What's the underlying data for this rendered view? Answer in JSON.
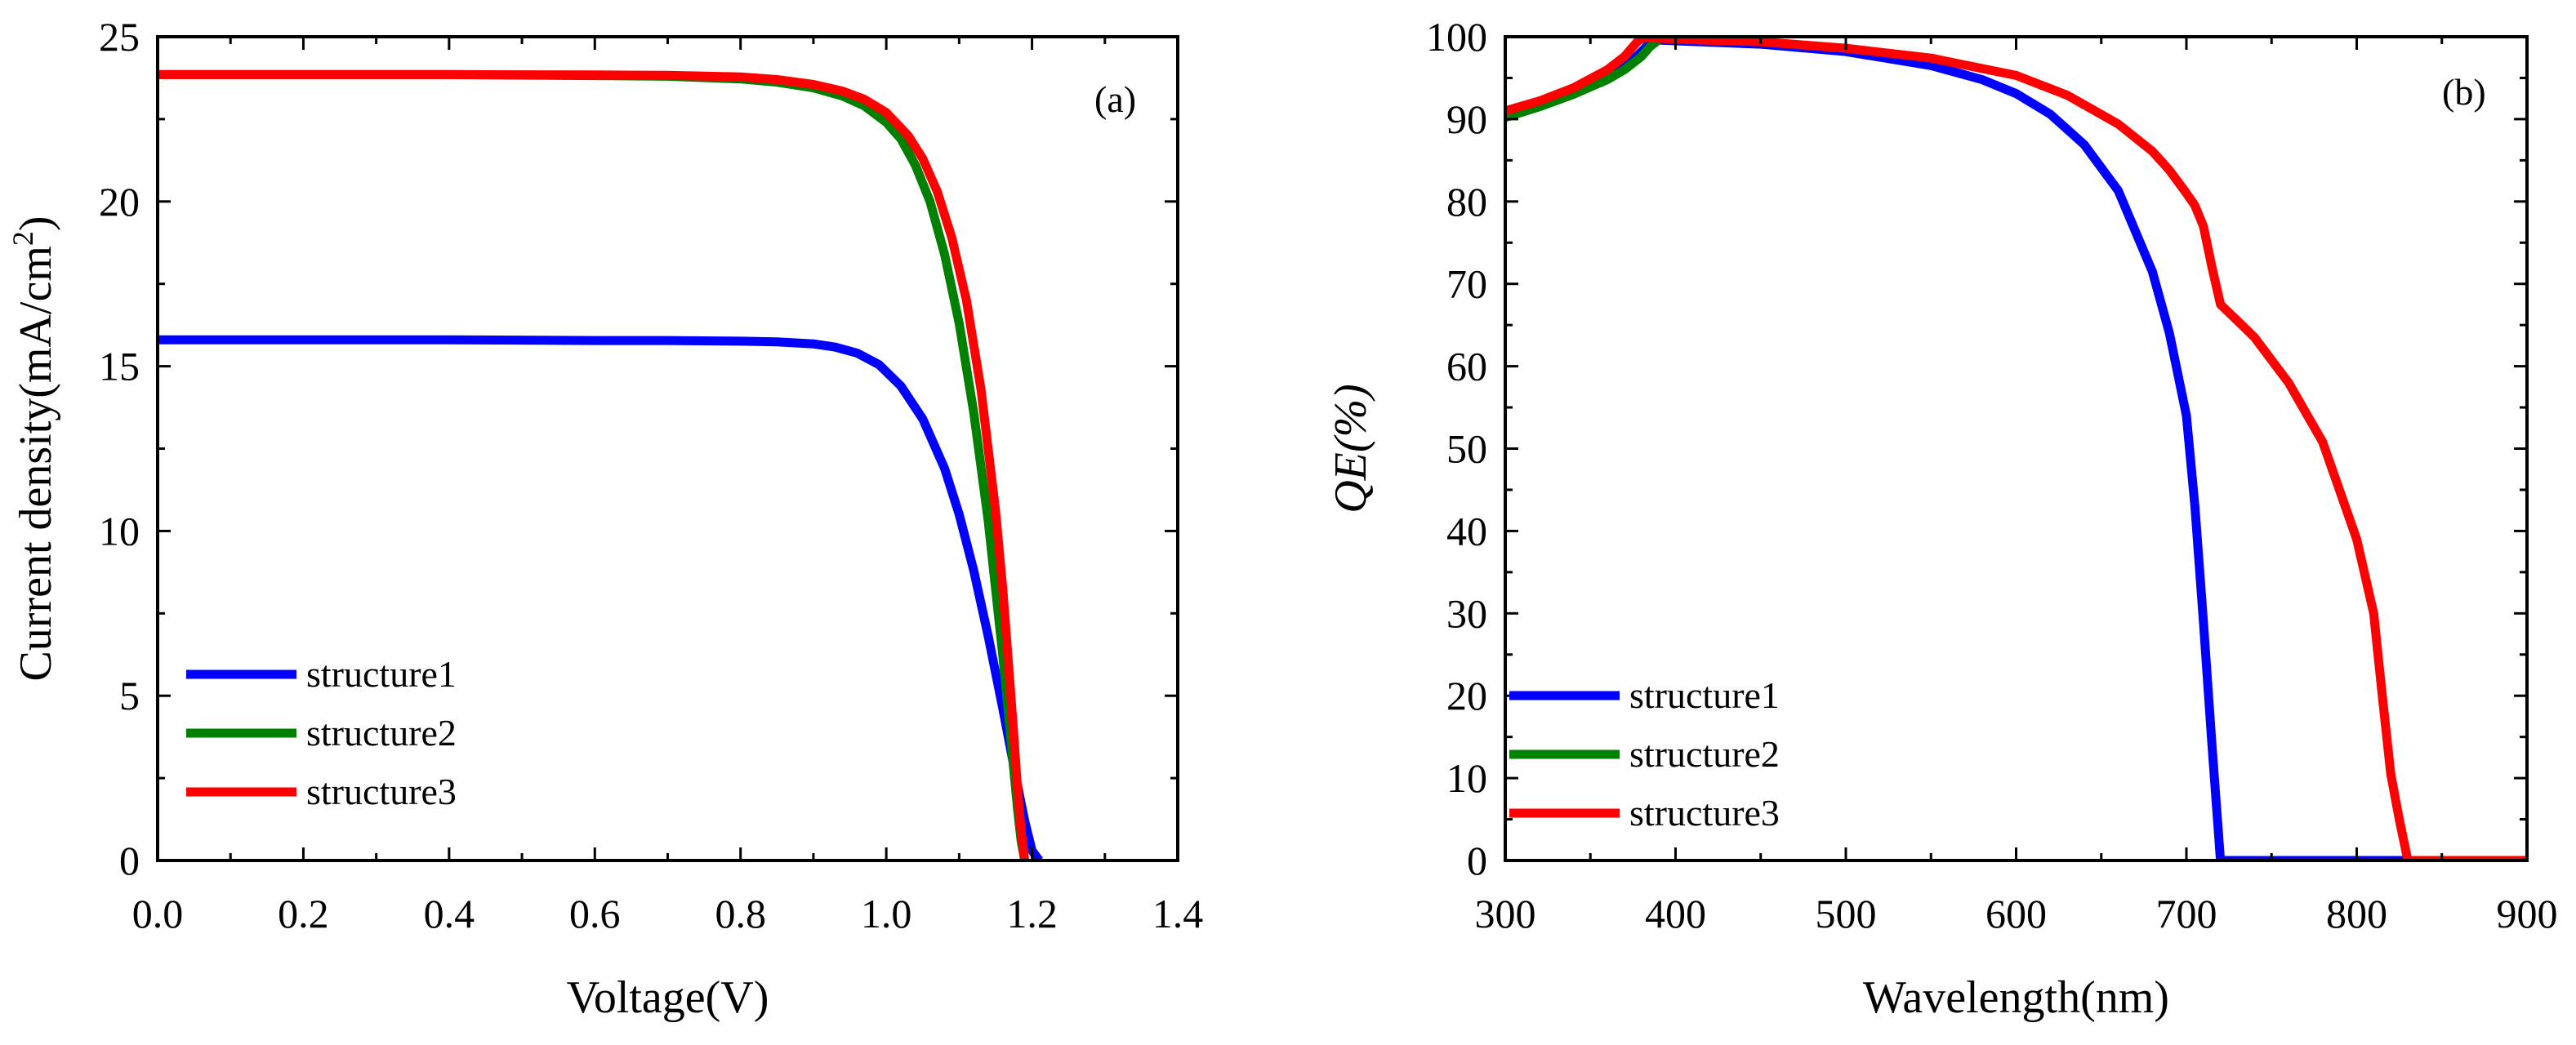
{
  "chart_data": [
    {
      "type": "line",
      "panel_label": "(a)",
      "xlabel": "Voltage(V)",
      "ylabel": "Current density(mA/cm",
      "ylabel_superscript": "2",
      "ylabel_suffix": ")",
      "xlim": [
        0.0,
        1.4
      ],
      "ylim": [
        0,
        25
      ],
      "xticks": [
        0.0,
        0.2,
        0.4,
        0.6,
        0.8,
        1.0,
        1.2,
        1.4
      ],
      "xtick_labels": [
        "0.0",
        "0.2",
        "0.4",
        "0.6",
        "0.8",
        "1.0",
        "1.2",
        "1.4"
      ],
      "yticks": [
        0,
        5,
        10,
        15,
        20,
        25
      ],
      "ytick_labels": [
        "0",
        "5",
        "10",
        "15",
        "20",
        "25"
      ],
      "legend_position": "lower-left",
      "series": [
        {
          "name": "structure1",
          "color": "#0000ff",
          "x": [
            0.0,
            0.2,
            0.4,
            0.6,
            0.7,
            0.8,
            0.85,
            0.9,
            0.93,
            0.96,
            0.99,
            1.02,
            1.05,
            1.08,
            1.1,
            1.12,
            1.14,
            1.16,
            1.18,
            1.19,
            1.2,
            1.21
          ],
          "y": [
            15.8,
            15.8,
            15.8,
            15.78,
            15.78,
            15.76,
            15.74,
            15.68,
            15.58,
            15.4,
            15.05,
            14.4,
            13.4,
            11.9,
            10.5,
            8.8,
            6.8,
            4.6,
            2.3,
            1.2,
            0.3,
            0.0
          ]
        },
        {
          "name": "structure2",
          "color": "#008000",
          "x": [
            0.0,
            0.2,
            0.4,
            0.6,
            0.7,
            0.8,
            0.85,
            0.9,
            0.94,
            0.97,
            1.0,
            1.02,
            1.04,
            1.06,
            1.08,
            1.1,
            1.12,
            1.14,
            1.16,
            1.17,
            1.18,
            1.185,
            1.19
          ],
          "y": [
            23.85,
            23.85,
            23.85,
            23.82,
            23.8,
            23.72,
            23.62,
            23.45,
            23.2,
            22.9,
            22.4,
            21.9,
            21.1,
            20.0,
            18.4,
            16.3,
            13.6,
            10.3,
            6.2,
            3.9,
            1.6,
            0.6,
            0.0
          ]
        },
        {
          "name": "structure3",
          "color": "#ff0000",
          "x": [
            0.0,
            0.2,
            0.4,
            0.6,
            0.7,
            0.8,
            0.85,
            0.9,
            0.94,
            0.97,
            1.0,
            1.03,
            1.05,
            1.07,
            1.09,
            1.11,
            1.13,
            1.15,
            1.16,
            1.17,
            1.175,
            1.18,
            1.185,
            1.19
          ],
          "y": [
            23.85,
            23.85,
            23.85,
            23.84,
            23.83,
            23.78,
            23.7,
            23.55,
            23.35,
            23.1,
            22.7,
            22.0,
            21.3,
            20.3,
            18.9,
            17.0,
            14.3,
            10.6,
            8.2,
            5.3,
            3.8,
            2.2,
            0.9,
            0.0
          ]
        }
      ]
    },
    {
      "type": "line",
      "panel_label": "(b)",
      "xlabel": "Wavelength(nm)",
      "ylabel": "QE(%)",
      "xlim": [
        300,
        900
      ],
      "ylim": [
        0,
        100
      ],
      "xticks": [
        300,
        400,
        500,
        600,
        700,
        800,
        900
      ],
      "xtick_labels": [
        "300",
        "400",
        "500",
        "600",
        "700",
        "800",
        "900"
      ],
      "yticks": [
        0,
        10,
        20,
        30,
        40,
        50,
        60,
        70,
        80,
        90,
        100
      ],
      "ytick_labels": [
        "0",
        "10",
        "20",
        "30",
        "40",
        "50",
        "60",
        "70",
        "80",
        "90",
        "100"
      ],
      "legend_position": "lower-left",
      "series": [
        {
          "name": "structure1",
          "color": "#0000ff",
          "x": [
            300,
            320,
            340,
            360,
            375,
            385,
            390,
            400,
            450,
            500,
            550,
            580,
            600,
            620,
            640,
            660,
            680,
            690,
            700,
            705,
            710,
            715,
            720,
            760,
            800,
            830
          ],
          "y": [
            90.5,
            91.8,
            93.2,
            95.0,
            97.2,
            99.2,
            99.6,
            99.5,
            99.1,
            98.2,
            96.5,
            94.8,
            93.1,
            90.6,
            86.9,
            81.3,
            71.5,
            64.0,
            54.0,
            43.0,
            29.0,
            14.0,
            0.0,
            0.0,
            0.0,
            0.0
          ]
        },
        {
          "name": "structure2",
          "color": "#008000",
          "x": [
            300,
            320,
            340,
            360,
            370,
            380,
            385,
            390
          ],
          "y": [
            90.2,
            91.5,
            93.0,
            94.8,
            96.0,
            97.6,
            98.8,
            99.6
          ]
        },
        {
          "name": "structure3",
          "color": "#ff0000",
          "x": [
            300,
            320,
            340,
            360,
            370,
            378,
            382,
            400,
            450,
            500,
            550,
            600,
            630,
            660,
            680,
            690,
            700,
            705,
            710,
            715,
            720,
            730,
            740,
            760,
            780,
            800,
            810,
            815,
            820,
            825,
            830,
            850,
            900
          ],
          "y": [
            91.0,
            92.2,
            93.8,
            96.0,
            97.6,
            99.5,
            99.9,
            99.7,
            99.4,
            98.6,
            97.4,
            95.3,
            92.9,
            89.4,
            86.1,
            83.8,
            81.0,
            79.5,
            77.0,
            72.0,
            67.5,
            65.5,
            63.5,
            58.0,
            50.8,
            39.0,
            30.0,
            20.0,
            10.5,
            5.0,
            0.0,
            0.0,
            0.0
          ]
        }
      ]
    }
  ]
}
